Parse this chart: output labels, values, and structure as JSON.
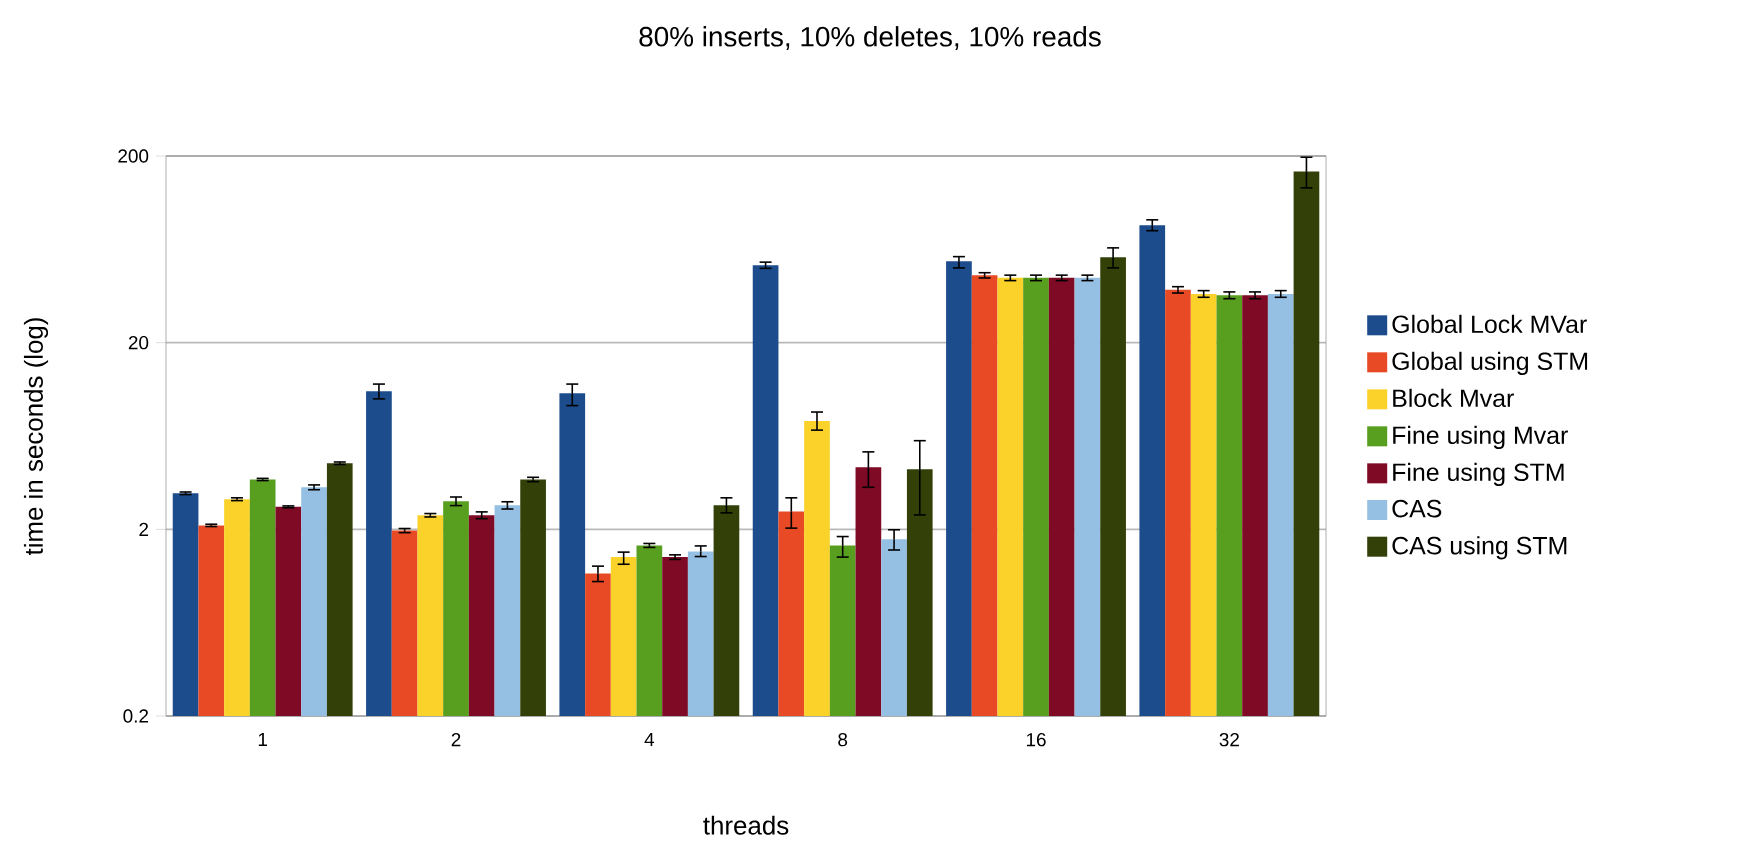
{
  "chart_data": {
    "type": "bar",
    "title": "80% inserts, 10% deletes, 10% reads",
    "xlabel": "threads",
    "ylabel": "time in seconds (log)",
    "categories": [
      "1",
      "2",
      "4",
      "8",
      "16",
      "32"
    ],
    "series": [
      {
        "name": "Global Lock MVar",
        "color": "#1c4c8c",
        "values": [
          3.12,
          11.0,
          10.7,
          52,
          54.6,
          85
        ],
        "errors": [
          0.05,
          [
            10.0,
            12.0
          ],
          [
            9.2,
            12.0
          ],
          2,
          [
            50.3,
            57.8
          ],
          [
            79.6,
            91
          ]
        ]
      },
      {
        "name": "Global using STM",
        "color": "#e84a25",
        "values": [
          2.1,
          1.97,
          1.16,
          2.49,
          45.9,
          38.4
        ],
        "errors": [
          0.03,
          0.05,
          [
            1.05,
            1.27
          ],
          [
            2.03,
            2.95
          ],
          1.5,
          1.5
        ]
      },
      {
        "name": "Block Mvar",
        "color": "#fbd22a",
        "values": [
          2.9,
          2.38,
          1.42,
          7.6,
          44.5,
          36.5
        ],
        "errors": [
          0.05,
          0.05,
          [
            1.3,
            1.51
          ],
          [
            6.8,
            8.5
          ],
          1.5,
          1.5
        ]
      },
      {
        "name": "Fine using Mvar",
        "color": "#589e1f",
        "values": [
          3.7,
          2.83,
          1.64,
          1.64,
          44.5,
          35.9
        ],
        "errors": [
          0.05,
          0.15,
          0.04,
          [
            1.42,
            1.83
          ],
          1.5,
          1.5
        ]
      },
      {
        "name": "Fine using STM",
        "color": "#7e0a25",
        "values": [
          2.64,
          2.38,
          1.42,
          4.3,
          44.5,
          35.9
        ],
        "errors": [
          0.03,
          0.1,
          0.04,
          [
            3.36,
            5.2
          ],
          1.5,
          1.5
        ]
      },
      {
        "name": "CAS",
        "color": "#95c0e4",
        "values": [
          3.36,
          2.69,
          1.52,
          1.77,
          44.5,
          36.5
        ],
        "errors": [
          0.1,
          0.12,
          [
            1.43,
            1.63
          ],
          [
            1.55,
            1.99
          ],
          1.5,
          1.5
        ]
      },
      {
        "name": "CAS using STM",
        "color": "#334108",
        "values": [
          4.52,
          3.7,
          2.69,
          4.2,
          57.4,
          165
        ],
        "errors": [
          0.07,
          0.1,
          [
            2.45,
            2.95
          ],
          [
            2.39,
            5.97
          ],
          [
            50.3,
            64.4
          ],
          [
            135,
            197
          ]
        ]
      }
    ],
    "ylim": [
      0.2,
      200
    ],
    "yticks": [
      0.2,
      2,
      20,
      200
    ],
    "log": true,
    "grid": "y",
    "legend": "right"
  }
}
